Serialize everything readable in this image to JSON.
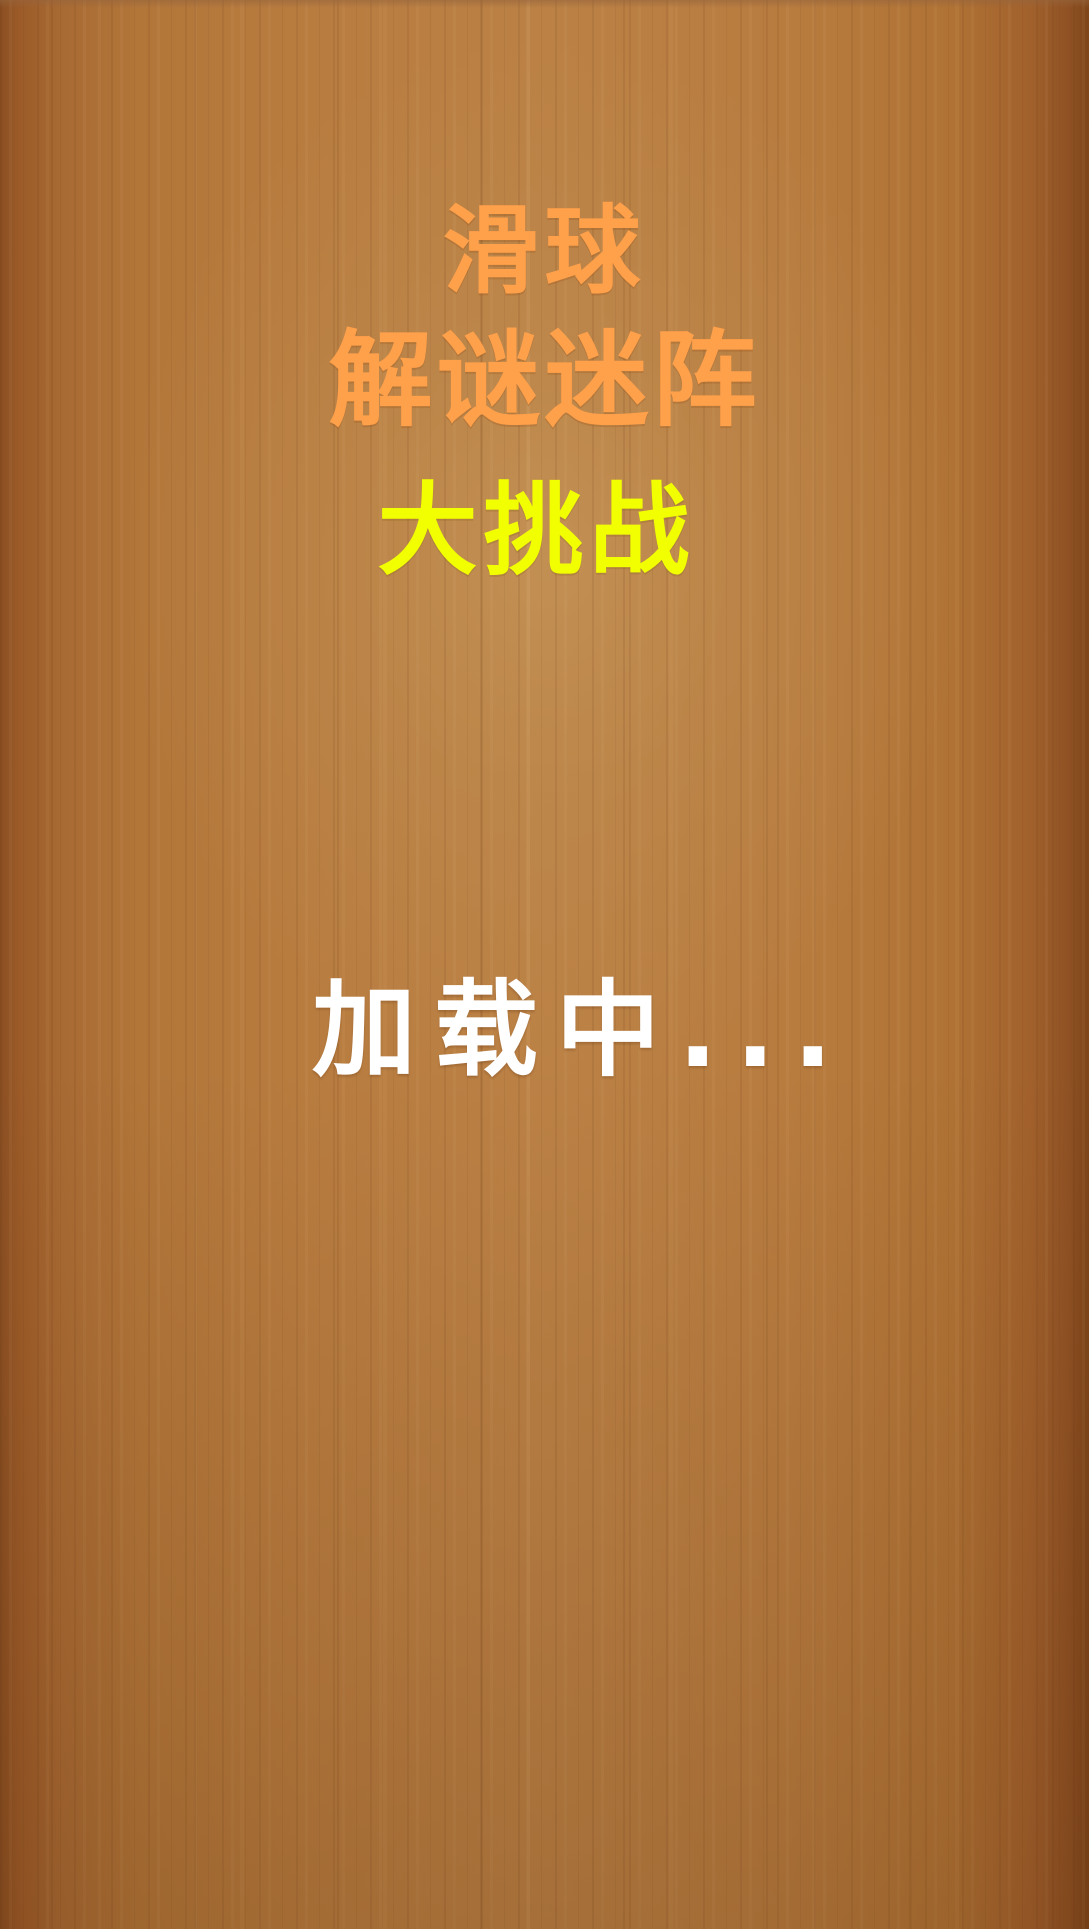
{
  "game": {
    "title_line1": "滑球",
    "title_line2": "解谜迷阵",
    "title_line3": "大挑战",
    "loading_text": "加载中..."
  },
  "colors": {
    "title_orange": "#ffa04a",
    "title_yellow": "#f2ff00",
    "loading_white": "#ffffff",
    "wood_background": "#b87c3f"
  }
}
